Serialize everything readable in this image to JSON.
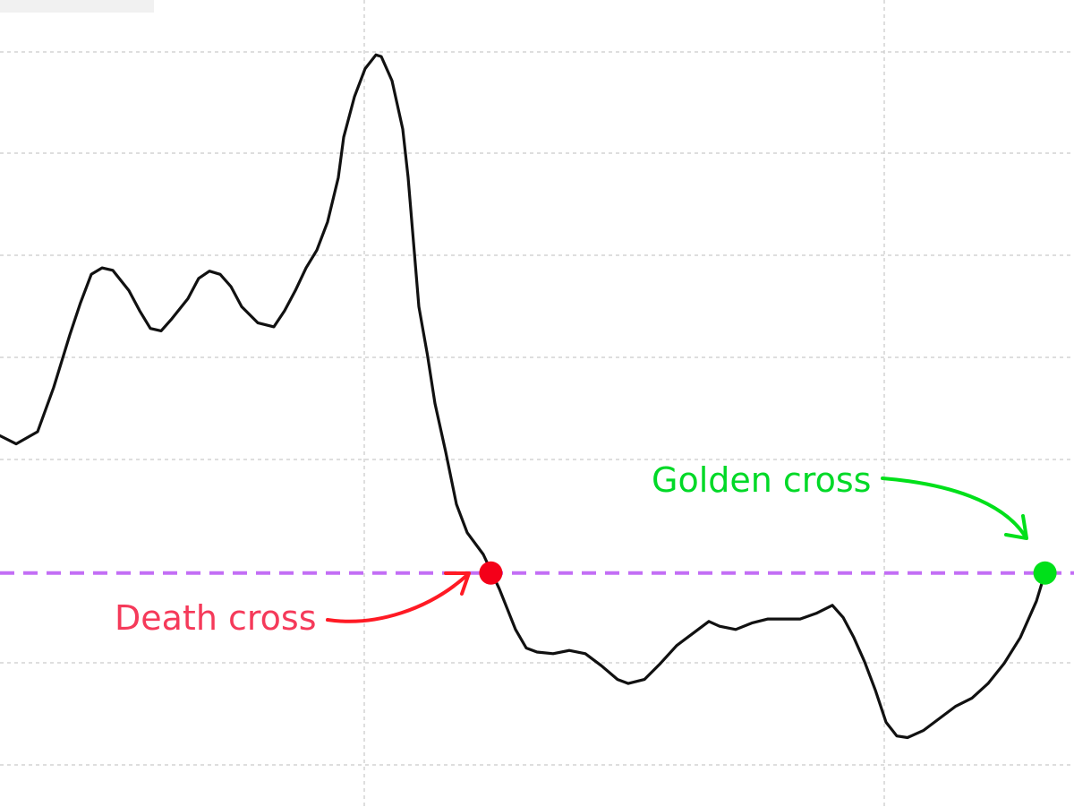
{
  "chart_data": {
    "type": "line",
    "title": "",
    "xlabel": "",
    "ylabel": "",
    "grid": true,
    "xlim": [
      0,
      100
    ],
    "ylim": [
      0,
      100
    ],
    "series": [
      {
        "values": [
          [
            0.0,
            46.0
          ],
          [
            1.5,
            45.0
          ],
          [
            3.5,
            46.5
          ],
          [
            5.0,
            52.0
          ],
          [
            6.5,
            58.5
          ],
          [
            7.5,
            62.5
          ],
          [
            8.5,
            66.0
          ],
          [
            9.5,
            66.8
          ],
          [
            10.5,
            66.5
          ],
          [
            12.0,
            64.0
          ],
          [
            13.0,
            61.5
          ],
          [
            14.0,
            59.3
          ],
          [
            15.0,
            59.0
          ],
          [
            16.0,
            60.5
          ],
          [
            17.5,
            63.0
          ],
          [
            18.5,
            65.5
          ],
          [
            19.5,
            66.4
          ],
          [
            20.5,
            66.0
          ],
          [
            21.5,
            64.5
          ],
          [
            22.5,
            62.0
          ],
          [
            24.0,
            60.0
          ],
          [
            25.5,
            59.5
          ],
          [
            26.5,
            61.5
          ],
          [
            27.5,
            64.0
          ],
          [
            28.5,
            66.8
          ],
          [
            29.5,
            69.0
          ],
          [
            30.5,
            72.5
          ],
          [
            31.5,
            78.0
          ],
          [
            32.0,
            83.0
          ],
          [
            33.0,
            88.0
          ],
          [
            34.0,
            91.5
          ],
          [
            35.0,
            93.2
          ],
          [
            35.5,
            93.0
          ],
          [
            36.5,
            90.0
          ],
          [
            37.5,
            84.0
          ],
          [
            38.0,
            78.0
          ],
          [
            38.5,
            70.0
          ],
          [
            39.0,
            62.0
          ],
          [
            39.8,
            56.0
          ],
          [
            40.5,
            50.0
          ],
          [
            41.5,
            44.0
          ],
          [
            42.5,
            37.5
          ],
          [
            43.5,
            34.0
          ],
          [
            45.0,
            31.3
          ],
          [
            46.5,
            27.0
          ],
          [
            48.0,
            22.0
          ],
          [
            49.0,
            19.7
          ],
          [
            50.0,
            19.2
          ],
          [
            51.5,
            19.0
          ],
          [
            53.0,
            19.4
          ],
          [
            54.5,
            19.0
          ],
          [
            56.0,
            17.5
          ],
          [
            57.5,
            15.8
          ],
          [
            58.5,
            15.3
          ],
          [
            60.0,
            15.8
          ],
          [
            61.5,
            17.8
          ],
          [
            63.0,
            20.0
          ],
          [
            64.5,
            21.5
          ],
          [
            66.0,
            23.0
          ],
          [
            67.0,
            22.4
          ],
          [
            68.5,
            22.0
          ],
          [
            70.0,
            22.8
          ],
          [
            71.5,
            23.3
          ],
          [
            73.0,
            23.3
          ],
          [
            74.5,
            23.3
          ],
          [
            76.0,
            24.0
          ],
          [
            77.5,
            25.0
          ],
          [
            78.5,
            23.5
          ],
          [
            79.5,
            21.0
          ],
          [
            80.5,
            18.0
          ],
          [
            81.5,
            14.5
          ],
          [
            82.5,
            10.5
          ],
          [
            83.5,
            8.8
          ],
          [
            84.5,
            8.6
          ],
          [
            86.0,
            9.5
          ],
          [
            87.5,
            11.0
          ],
          [
            89.0,
            12.5
          ],
          [
            90.5,
            13.5
          ],
          [
            92.0,
            15.3
          ],
          [
            93.5,
            17.8
          ],
          [
            95.0,
            21.0
          ],
          [
            96.5,
            25.5
          ],
          [
            97.3,
            29.0
          ]
        ]
      }
    ],
    "reference_line": {
      "y": 29.0,
      "color": "#c36ef5",
      "style": "dashed"
    },
    "markers": [
      {
        "x": 45.7,
        "y": 29.0,
        "color": "#f40019"
      },
      {
        "x": 97.3,
        "y": 29.0,
        "color": "#00e01a"
      }
    ],
    "annotations": [
      {
        "text": "Death cross",
        "color": "#f53a5a",
        "arrow_color": "#ff1a24"
      },
      {
        "text": "Golden cross",
        "color": "#00d927",
        "arrow_color": "#00e01a"
      }
    ],
    "colors": {
      "line": "#111111",
      "grid": "#c9c9c9",
      "background": "#ffffff"
    }
  }
}
